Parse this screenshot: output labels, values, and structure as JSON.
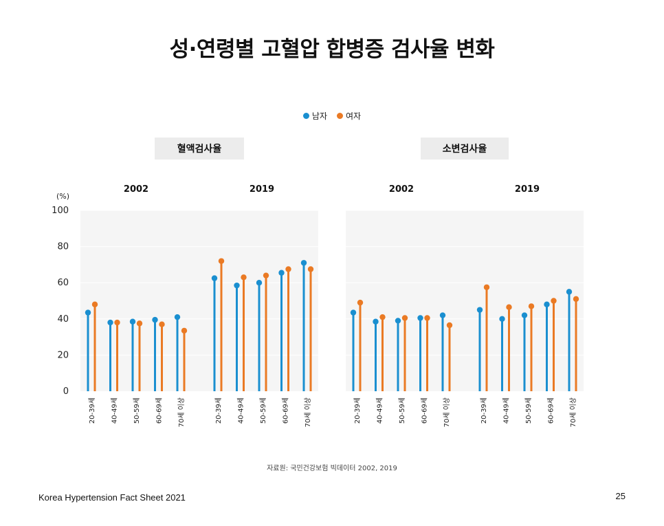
{
  "title": "성·연령별 고혈압 합병증 검사율 변화",
  "legend": [
    {
      "label": "남자",
      "color": "#1a8fd0"
    },
    {
      "label": "여자",
      "color": "#ea7a24"
    }
  ],
  "unit_label": "(%)",
  "source": "자료원: 국민건강보험 빅데이터 2002, 2019",
  "footer": "Korea Hypertension Fact Sheet 2021",
  "page_number": "25",
  "chart_data": [
    {
      "type": "lollipop",
      "panel_title": "혈액검사율",
      "ylim": [
        0,
        100
      ],
      "yticks": [
        0,
        20,
        40,
        60,
        80,
        100
      ],
      "grid": true,
      "groups": [
        {
          "year": "2002",
          "categories": [
            "20-39세",
            "40-49세",
            "50-59세",
            "60-69세",
            "70세 이상"
          ],
          "series": [
            {
              "name": "남자",
              "values": [
                43.5,
                38,
                38.5,
                39.5,
                41
              ]
            },
            {
              "name": "여자",
              "values": [
                48,
                38,
                37.5,
                37,
                33.5
              ]
            }
          ]
        },
        {
          "year": "2019",
          "categories": [
            "20-39세",
            "40-49세",
            "50-59세",
            "60-69세",
            "70세 이상"
          ],
          "series": [
            {
              "name": "남자",
              "values": [
                62.5,
                58.5,
                60,
                65.5,
                71
              ]
            },
            {
              "name": "여자",
              "values": [
                72,
                63,
                64,
                67.5,
                67.5
              ]
            }
          ]
        }
      ]
    },
    {
      "type": "lollipop",
      "panel_title": "소변검사율",
      "ylim": [
        0,
        100
      ],
      "yticks": [
        0,
        20,
        40,
        60,
        80,
        100
      ],
      "grid": true,
      "groups": [
        {
          "year": "2002",
          "categories": [
            "20-39세",
            "40-49세",
            "50-59세",
            "60-69세",
            "70세 이상"
          ],
          "series": [
            {
              "name": "남자",
              "values": [
                43.5,
                38.5,
                39,
                40.5,
                42
              ]
            },
            {
              "name": "여자",
              "values": [
                49,
                41,
                40.5,
                40.5,
                36.5
              ]
            }
          ]
        },
        {
          "year": "2019",
          "categories": [
            "20-39세",
            "40-49세",
            "50-59세",
            "60-69세",
            "70세 이상"
          ],
          "series": [
            {
              "name": "남자",
              "values": [
                45,
                40,
                42,
                48,
                55
              ]
            },
            {
              "name": "여자",
              "values": [
                57.5,
                46.5,
                47,
                50,
                51
              ]
            }
          ]
        }
      ]
    }
  ]
}
